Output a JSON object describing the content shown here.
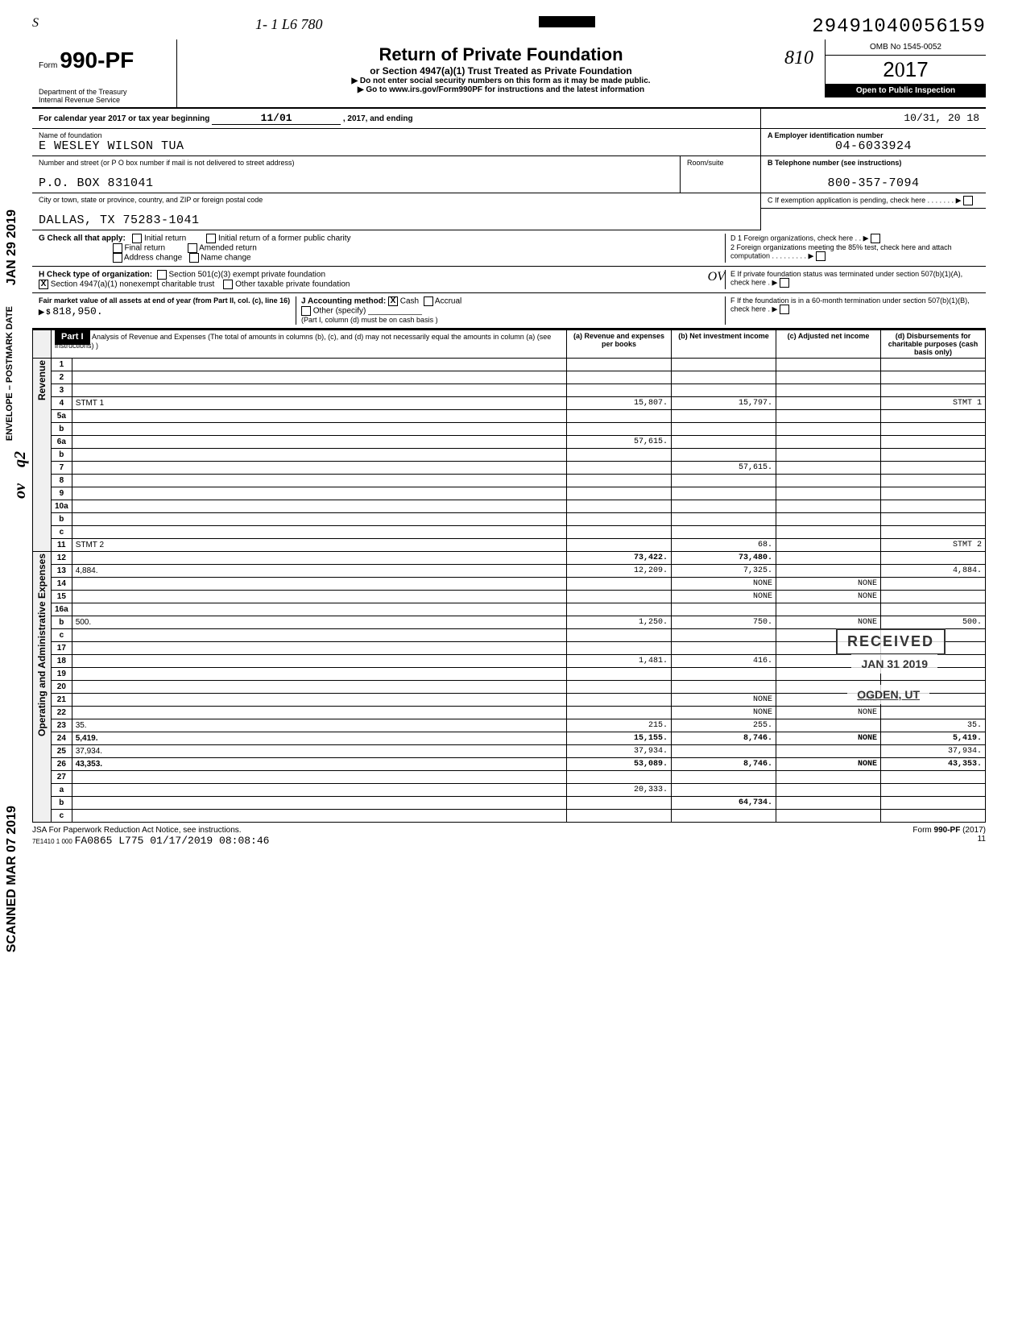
{
  "dln": "29491040056159",
  "form": {
    "number": "990-PF",
    "prefix": "Form",
    "dept1": "Department of the Treasury",
    "dept2": "Internal Revenue Service",
    "title": "Return of Private Foundation",
    "subtitle": "or Section 4947(a)(1) Trust Treated as Private Foundation",
    "warn": "▶ Do not enter social security numbers on this form as it may be made public.",
    "goto": "▶ Go to www.irs.gov/Form990PF for instructions and the latest information",
    "omb": "OMB No 1545-0052",
    "year": "2017",
    "open": "Open to Public Inspection"
  },
  "period": {
    "label": "For calendar year 2017 or tax year beginning",
    "begin": "11/01",
    "mid": ", 2017, and ending",
    "end": "10/31, 20 18"
  },
  "id": {
    "name_label": "Name of foundation",
    "name": "E WESLEY WILSON TUA",
    "addr_label": "Number and street (or P O box number if mail is not delivered to street address)",
    "addr": "P.O. BOX 831041",
    "room_label": "Room/suite",
    "city_label": "City or town, state or province, country, and ZIP or foreign postal code",
    "city": "DALLAS, TX 75283-1041",
    "ein_label": "A Employer identification number",
    "ein": "04-6033924",
    "tel_label": "B Telephone number (see instructions)",
    "tel": "800-357-7094"
  },
  "boxC": "C  If exemption application is pending, check here . . . . . . . ▶",
  "boxD": {
    "d1": "D  1  Foreign organizations, check here . . ▶",
    "d2": "2  Foreign organizations meeting the 85% test, check here and attach computation . . . . . . . . . ▶"
  },
  "boxE": "E  If private foundation status was terminated under section 507(b)(1)(A), check here . ▶",
  "boxF": "F  If the foundation is in a 60-month termination under section 507(b)(1)(B), check here . ▶",
  "checkG": {
    "label": "G Check all that apply:",
    "o1": "Initial return",
    "o2": "Final return",
    "o3": "Address change",
    "o4": "Initial return of a former public charity",
    "o5": "Amended return",
    "o6": "Name change"
  },
  "checkH": {
    "label": "H Check type of organization:",
    "o1": "Section 501(c)(3) exempt private foundation",
    "o2": "Section 4947(a)(1) nonexempt charitable trust",
    "o3": "Other taxable private foundation",
    "checked": "X"
  },
  "lineI": {
    "label": "Fair market value of all assets at end of year (from Part II, col. (c), line 16) ▶ $",
    "value": "818,950."
  },
  "lineJ": {
    "label": "J Accounting method:",
    "cash": "Cash",
    "accrual": "Accrual",
    "other": "Other (specify)",
    "note": "(Part I, column (d) must be on cash basis )",
    "checked": "X"
  },
  "part1": {
    "label": "Part I",
    "title": "Analysis of Revenue and Expenses (The total of amounts in columns (b), (c), and (d) may not necessarily equal the amounts in column (a) (see instructions) )",
    "col_a": "(a) Revenue and expenses per books",
    "col_b": "(b) Net investment income",
    "col_c": "(c) Adjusted net income",
    "col_d": "(d) Disbursements for charitable purposes (cash basis only)"
  },
  "side_labels": {
    "revenue": "Revenue",
    "expenses": "Operating and Administrative Expenses"
  },
  "rows": [
    {
      "n": "1",
      "d": "",
      "a": "",
      "b": "",
      "c": ""
    },
    {
      "n": "2",
      "d": "",
      "a": "",
      "b": "",
      "c": ""
    },
    {
      "n": "3",
      "d": "",
      "a": "",
      "b": "",
      "c": ""
    },
    {
      "n": "4",
      "d": "STMT 1",
      "a": "15,807.",
      "b": "15,797.",
      "c": ""
    },
    {
      "n": "5a",
      "d": "",
      "a": "",
      "b": "",
      "c": ""
    },
    {
      "n": "b",
      "d": "",
      "a": "",
      "b": "",
      "c": ""
    },
    {
      "n": "6a",
      "d": "",
      "a": "57,615.",
      "b": "",
      "c": ""
    },
    {
      "n": "b",
      "d": "",
      "a": "",
      "b": "",
      "c": ""
    },
    {
      "n": "7",
      "d": "",
      "a": "",
      "b": "57,615.",
      "c": ""
    },
    {
      "n": "8",
      "d": "",
      "a": "",
      "b": "",
      "c": ""
    },
    {
      "n": "9",
      "d": "",
      "a": "",
      "b": "",
      "c": ""
    },
    {
      "n": "10a",
      "d": "",
      "a": "",
      "b": "",
      "c": ""
    },
    {
      "n": "b",
      "d": "",
      "a": "",
      "b": "",
      "c": ""
    },
    {
      "n": "c",
      "d": "",
      "a": "",
      "b": "",
      "c": ""
    },
    {
      "n": "11",
      "d": "STMT 2",
      "a": "",
      "b": "68.",
      "c": ""
    },
    {
      "n": "12",
      "d": "",
      "a": "73,422.",
      "b": "73,480.",
      "c": "",
      "bold": true
    },
    {
      "n": "13",
      "d": "4,884.",
      "a": "12,209.",
      "b": "7,325.",
      "c": ""
    },
    {
      "n": "14",
      "d": "",
      "a": "",
      "b": "NONE",
      "c": "NONE"
    },
    {
      "n": "15",
      "d": "",
      "a": "",
      "b": "NONE",
      "c": "NONE"
    },
    {
      "n": "16a",
      "d": "",
      "a": "",
      "b": "",
      "c": ""
    },
    {
      "n": "b",
      "d": "500.",
      "a": "1,250.",
      "b": "750.",
      "c": "NONE"
    },
    {
      "n": "c",
      "d": "",
      "a": "",
      "b": "",
      "c": ""
    },
    {
      "n": "17",
      "d": "",
      "a": "",
      "b": "",
      "c": ""
    },
    {
      "n": "18",
      "d": "",
      "a": "1,481.",
      "b": "416.",
      "c": ""
    },
    {
      "n": "19",
      "d": "",
      "a": "",
      "b": "",
      "c": ""
    },
    {
      "n": "20",
      "d": "",
      "a": "",
      "b": "",
      "c": ""
    },
    {
      "n": "21",
      "d": "",
      "a": "",
      "b": "NONE",
      "c": "NONE"
    },
    {
      "n": "22",
      "d": "",
      "a": "",
      "b": "NONE",
      "c": "NONE"
    },
    {
      "n": "23",
      "d": "35.",
      "a": "215.",
      "b": "255.",
      "c": ""
    },
    {
      "n": "24",
      "d": "5,419.",
      "a": "15,155.",
      "b": "8,746.",
      "c": "NONE",
      "bold": true
    },
    {
      "n": "25",
      "d": "37,934.",
      "a": "37,934.",
      "b": "",
      "c": ""
    },
    {
      "n": "26",
      "d": "43,353.",
      "a": "53,089.",
      "b": "8,746.",
      "c": "NONE",
      "bold": true
    },
    {
      "n": "27",
      "d": "",
      "a": "",
      "b": "",
      "c": ""
    },
    {
      "n": "a",
      "d": "",
      "a": "20,333.",
      "b": "",
      "c": ""
    },
    {
      "n": "b",
      "d": "",
      "a": "",
      "b": "64,734.",
      "c": "",
      "bold": true
    },
    {
      "n": "c",
      "d": "",
      "a": "",
      "b": "",
      "c": "",
      "bold": true
    }
  ],
  "stamps": {
    "received": "RECEIVED",
    "date": "JAN 31 2019",
    "loc": "OGDEN, UT",
    "scanned": "SCANNED MAR 07 2019",
    "jan29": "JAN 29 2019",
    "envelope": "ENVELOPE – POSTMARK DATE"
  },
  "footer": {
    "jsa": "JSA For Paperwork Reduction Act Notice, see instructions.",
    "code": "7E1410 1 000",
    "batch": "FA0865 L775 01/17/2019 08:08:46",
    "formref": "Form 990-PF (2017)",
    "page": "11"
  },
  "handwritten": {
    "topnum": "1-  1 L6 780",
    "eight10": "810",
    "ov": "OV",
    "q2": "q2",
    "ov2": "ov",
    "s": "S"
  }
}
